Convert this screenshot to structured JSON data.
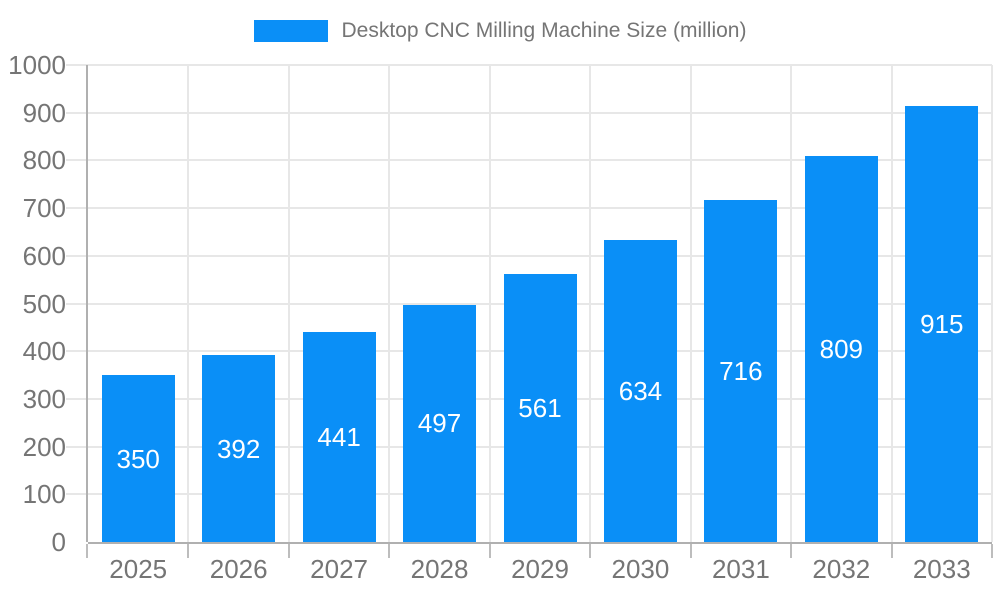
{
  "chart_data": {
    "type": "bar",
    "title": "Desktop CNC Milling Machine Size (million)",
    "legend": [
      {
        "label": "Desktop CNC Milling Machine Size (million)",
        "color": "#0A8FF7"
      }
    ],
    "legend_position": "top-center",
    "categories": [
      "2025",
      "2026",
      "2027",
      "2028",
      "2029",
      "2030",
      "2031",
      "2032",
      "2033"
    ],
    "series": [
      {
        "name": "Desktop CNC Milling Machine Size (million)",
        "values": [
          350,
          392,
          441,
          497,
          561,
          634,
          716,
          809,
          915
        ]
      }
    ],
    "value_labels_shown": true,
    "value_label_position": "inside-center",
    "xlabel": "",
    "ylabel": "",
    "ylim": [
      0,
      1000
    ],
    "ytick_step": 100,
    "ytick_labels": [
      "0",
      "100",
      "200",
      "300",
      "400",
      "500",
      "600",
      "700",
      "800",
      "900",
      "1000"
    ],
    "grid": true,
    "colors": {
      "bar": "#0A8FF7",
      "grid": "#e7e7e7",
      "axis": "#b0b0b0",
      "tick": "#bdbdbd",
      "label_text": "#757575",
      "value_label_text": "#ffffff",
      "background": "#ffffff"
    }
  }
}
